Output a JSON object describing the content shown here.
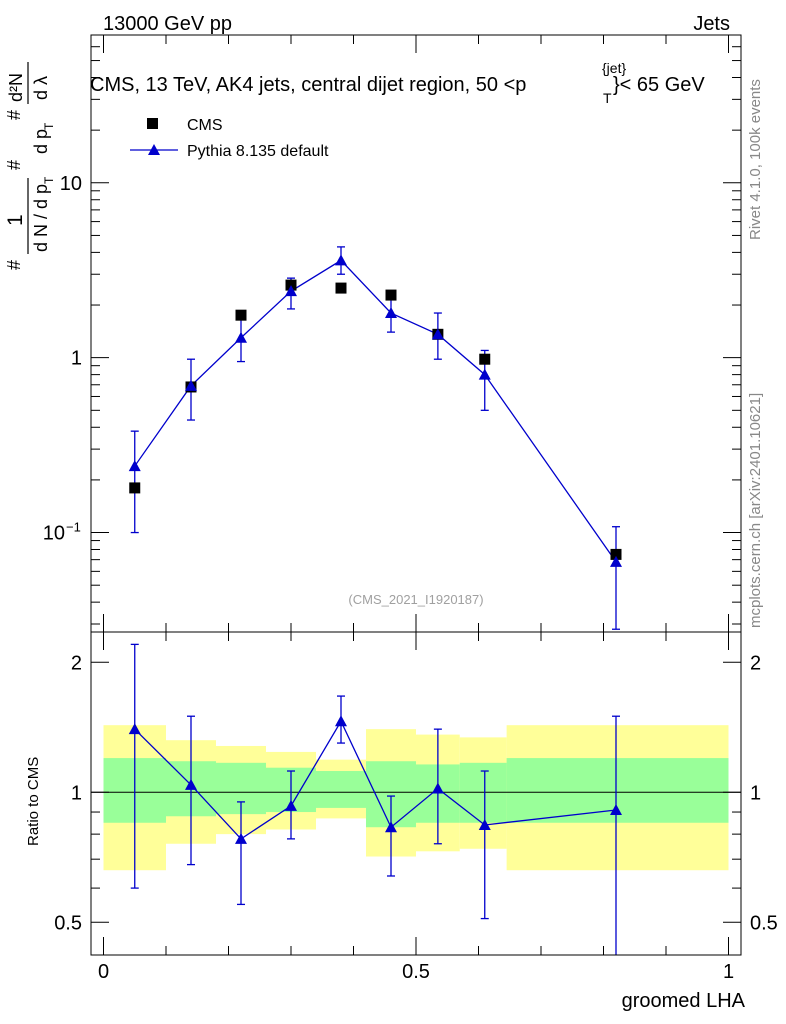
{
  "header": {
    "energy_label": "13000 GeV pp",
    "process_label": "Jets",
    "plot_title": "CMS, 13 TeV, AK4 jets, central dijet region, 50 <p",
    "title_sup": "{jet}",
    "title_sub": "T",
    "title_end": "}< 65 GeV",
    "side_rivet": "Rivet 4.1.0,  100k events",
    "side_mcplots": "mcplots.cern.ch [arXiv:2401.10621]",
    "analysis_id": "(CMS_2021_I1920187)"
  },
  "colors": {
    "mc": "#0000cc",
    "data": "#000000",
    "band_inner": "#99ff99",
    "band_outer": "#ffff99"
  },
  "chart_data": [
    {
      "type": "scatter",
      "panel": "main",
      "yscale": "log",
      "ylim": [
        0.027,
        70
      ],
      "xlim": [
        -0.02,
        1.02
      ],
      "ylabel_parts": [
        "#",
        "1",
        "d N / d p",
        "T",
        "#",
        "d p",
        "T",
        "#",
        "d²N",
        "d λ"
      ],
      "yticks": [
        {
          "value": 10,
          "label": "10"
        },
        {
          "value": 1,
          "label": "1"
        },
        {
          "value": 0.1,
          "label": "10",
          "sup": "−1"
        }
      ],
      "legend": {
        "placement": "top-left",
        "entries": [
          "CMS",
          "Pythia 8.135 default"
        ]
      },
      "series": [
        {
          "name": "CMS",
          "marker": "square",
          "x": [
            0.05,
            0.14,
            0.22,
            0.3,
            0.38,
            0.46,
            0.535,
            0.61,
            0.82
          ],
          "y": [
            0.18,
            0.68,
            1.75,
            2.6,
            2.5,
            2.28,
            1.36,
            0.98,
            0.075
          ]
        },
        {
          "name": "Pythia 8.135 default",
          "marker": "triangle",
          "line": true,
          "x": [
            0.05,
            0.14,
            0.22,
            0.3,
            0.38,
            0.46,
            0.535,
            0.61,
            0.82
          ],
          "y": [
            0.24,
            0.69,
            1.3,
            2.4,
            3.6,
            1.8,
            1.36,
            0.8,
            0.068
          ],
          "yerr_low": [
            0.1,
            0.44,
            0.95,
            1.9,
            3.0,
            1.4,
            0.98,
            0.5,
            0.028
          ],
          "yerr_high": [
            0.38,
            0.98,
            1.75,
            2.85,
            4.3,
            2.3,
            1.8,
            1.1,
            0.108
          ]
        }
      ]
    },
    {
      "type": "scatter",
      "panel": "ratio",
      "yscale": "log",
      "ylim": [
        0.42,
        2.35
      ],
      "xlim": [
        -0.02,
        1.02
      ],
      "ylabel": "Ratio to CMS",
      "xlabel": "groomed LHA",
      "xticks": [
        {
          "value": 0,
          "label": "0"
        },
        {
          "value": 0.5,
          "label": "0.5"
        },
        {
          "value": 1,
          "label": "1"
        }
      ],
      "yticks": [
        {
          "value": 2,
          "label": "2"
        },
        {
          "value": 1,
          "label": "1"
        },
        {
          "value": 0.5,
          "label": "0.5"
        }
      ],
      "reference_line": 1,
      "bands": [
        {
          "x0": 0.0,
          "x1": 0.1,
          "inner": [
            0.85,
            1.2
          ],
          "outer": [
            0.66,
            1.43
          ]
        },
        {
          "x0": 0.1,
          "x1": 0.18,
          "inner": [
            0.88,
            1.18
          ],
          "outer": [
            0.76,
            1.32
          ]
        },
        {
          "x0": 0.18,
          "x1": 0.26,
          "inner": [
            0.89,
            1.17
          ],
          "outer": [
            0.8,
            1.28
          ]
        },
        {
          "x0": 0.26,
          "x1": 0.34,
          "inner": [
            0.9,
            1.14
          ],
          "outer": [
            0.82,
            1.24
          ]
        },
        {
          "x0": 0.34,
          "x1": 0.42,
          "inner": [
            0.92,
            1.12
          ],
          "outer": [
            0.87,
            1.19
          ]
        },
        {
          "x0": 0.42,
          "x1": 0.5,
          "inner": [
            0.83,
            1.18
          ],
          "outer": [
            0.71,
            1.4
          ]
        },
        {
          "x0": 0.5,
          "x1": 0.57,
          "inner": [
            0.85,
            1.16
          ],
          "outer": [
            0.73,
            1.36
          ]
        },
        {
          "x0": 0.57,
          "x1": 0.645,
          "inner": [
            0.85,
            1.17
          ],
          "outer": [
            0.74,
            1.34
          ]
        },
        {
          "x0": 0.645,
          "x1": 1.0,
          "inner": [
            0.85,
            1.2
          ],
          "outer": [
            0.66,
            1.43
          ]
        }
      ],
      "series": [
        {
          "name": "Pythia 8.135 default / CMS",
          "marker": "triangle",
          "line": true,
          "x": [
            0.05,
            0.14,
            0.22,
            0.3,
            0.38,
            0.46,
            0.535,
            0.61,
            0.82
          ],
          "y": [
            1.4,
            1.04,
            0.78,
            0.93,
            1.46,
            0.83,
            1.02,
            0.84,
            0.91
          ],
          "yerr_low": [
            0.6,
            0.68,
            0.55,
            0.78,
            1.3,
            0.64,
            0.76,
            0.51,
            0.37
          ],
          "yerr_high": [
            2.2,
            1.5,
            0.95,
            1.12,
            1.67,
            0.98,
            1.4,
            1.12,
            1.5
          ]
        }
      ]
    }
  ]
}
